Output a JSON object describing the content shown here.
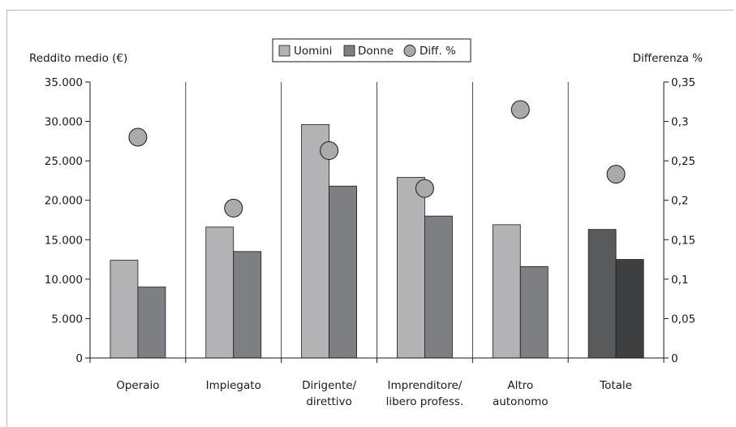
{
  "chart_data": {
    "type": "bar",
    "categories": [
      [
        "Operaio"
      ],
      [
        "Impiegato"
      ],
      [
        "Dirigente/",
        "direttivo"
      ],
      [
        "Imprenditore/",
        "libero profess."
      ],
      [
        "Altro",
        "autonomo"
      ],
      [
        "Totale"
      ]
    ],
    "y_left_label": "Reddito medio (€)",
    "y_right_label": "Differenza %",
    "y_left_ticks": [
      "0",
      "5.000",
      "10.000",
      "15.000",
      "20.000",
      "25.000",
      "30.000",
      "35.000"
    ],
    "y_right_ticks": [
      "0",
      "0,05",
      "0,1",
      "0,15",
      "0,2",
      "0,25",
      "0,3",
      "0,35"
    ],
    "ylim_left": [
      0,
      35000
    ],
    "ylim_right": [
      0,
      0.35
    ],
    "legend": {
      "uomini": "Uomini",
      "donne": "Donne",
      "diff": "Diff. %"
    },
    "legend_position": "top-center",
    "grid": "vertical category separators only",
    "series": [
      {
        "name": "Uomini",
        "axis": "left",
        "values": [
          12400,
          16600,
          29600,
          22900,
          16900,
          16300
        ]
      },
      {
        "name": "Donne",
        "axis": "left",
        "values": [
          9000,
          13500,
          21800,
          18000,
          11600,
          12500
        ]
      },
      {
        "name": "Diff. %",
        "axis": "right",
        "marker": "circle",
        "values": [
          0.28,
          0.19,
          0.263,
          0.215,
          0.315,
          0.233
        ]
      }
    ],
    "colors": {
      "uomini": "#b3b3b5",
      "donne": "#7e7f82",
      "uomini_totale": "#595a5c",
      "donne_totale": "#3e3f41",
      "circle": "#a9aaac"
    }
  }
}
